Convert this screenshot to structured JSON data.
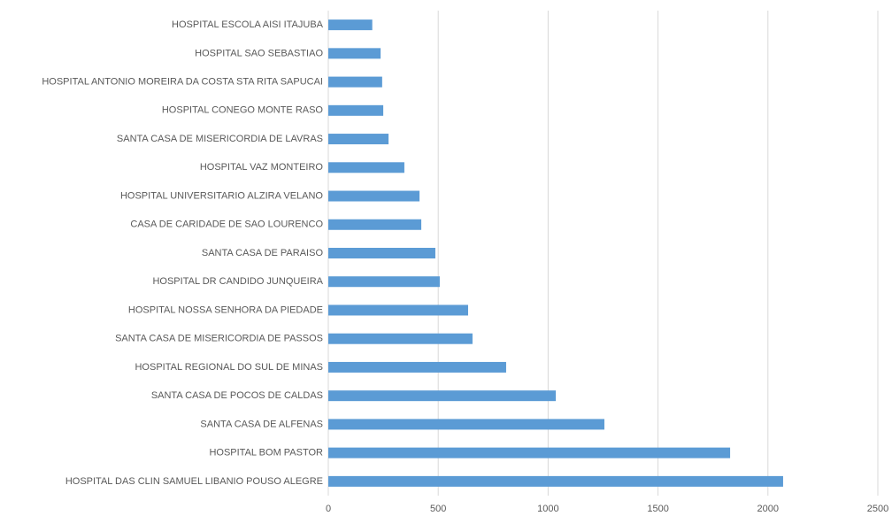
{
  "chart_data": {
    "type": "barh",
    "categories": [
      "HOSPITAL ESCOLA AISI ITAJUBA",
      "HOSPITAL SAO SEBASTIAO",
      "HOSPITAL ANTONIO MOREIRA DA COSTA STA RITA SAPUCAI",
      "HOSPITAL CONEGO MONTE RASO",
      "SANTA CASA DE MISERICORDIA DE LAVRAS",
      "HOSPITAL VAZ MONTEIRO",
      "HOSPITAL UNIVERSITARIO ALZIRA VELANO",
      "CASA DE CARIDADE DE SAO LOURENCO",
      "SANTA CASA DE PARAISO",
      "HOSPITAL DR CANDIDO JUNQUEIRA",
      "HOSPITAL NOSSA SENHORA DA PIEDADE",
      "SANTA CASA DE MISERICORDIA DE PASSOS",
      "HOSPITAL REGIONAL DO SUL DE MINAS",
      "SANTA CASA DE POCOS DE CALDAS",
      "SANTA CASA DE ALFENAS",
      "HOSPITAL BOM PASTOR",
      "HOSPITAL DAS CLIN SAMUEL LIBANIO POUSO ALEGRE"
    ],
    "values": [
      200,
      238,
      245,
      250,
      274,
      346,
      415,
      423,
      487,
      507,
      636,
      656,
      809,
      1035,
      1256,
      1828,
      2069
    ],
    "color": "#5b9bd5",
    "xlim": [
      0,
      2500
    ],
    "xticks": [
      0,
      500,
      1000,
      1500,
      2000,
      2500
    ],
    "grid": true
  }
}
